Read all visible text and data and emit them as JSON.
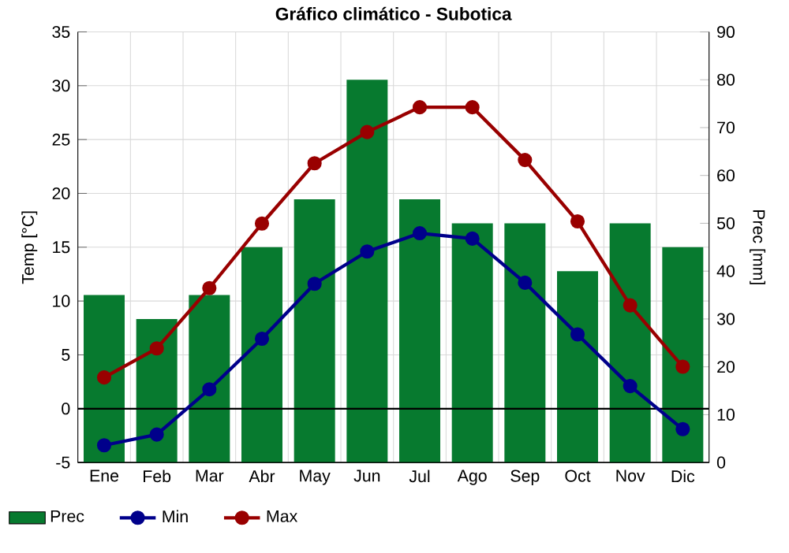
{
  "chart_data": {
    "type": "bar",
    "title": "Gráfico climático - Subotica",
    "categories": [
      "Ene",
      "Feb",
      "Mar",
      "Abr",
      "May",
      "Jun",
      "Jul",
      "Ago",
      "Sep",
      "Oct",
      "Nov",
      "Dic"
    ],
    "ylabel": "Temp [°C]",
    "y2label": "Prec [mm]",
    "ylim": [
      -5,
      35
    ],
    "yticks": [
      -5,
      0,
      5,
      10,
      15,
      20,
      25,
      30,
      35
    ],
    "y2lim": [
      0,
      90
    ],
    "y2ticks": [
      0,
      10,
      20,
      30,
      40,
      50,
      60,
      70,
      80,
      90
    ],
    "series": [
      {
        "name": "Prec",
        "axis": "y2",
        "color": "#077a2f",
        "values": [
          35,
          30,
          35,
          45,
          55,
          80,
          55,
          50,
          50,
          40,
          50,
          45
        ]
      },
      {
        "name": "Min",
        "type": "line",
        "color": "#00008b",
        "values": [
          -3.4,
          -2.4,
          1.8,
          6.5,
          11.6,
          14.6,
          16.3,
          15.8,
          11.7,
          6.9,
          2.1,
          -1.9
        ]
      },
      {
        "name": "Max",
        "type": "line",
        "color": "#990000",
        "values": [
          2.9,
          5.6,
          11.2,
          17.2,
          22.8,
          25.7,
          28,
          28,
          23.1,
          17.4,
          9.6,
          3.9
        ]
      }
    ],
    "grid": true,
    "legend": "bottom",
    "marker": "circle",
    "ref_lines": [
      {
        "axis": "y",
        "value": 0,
        "color": "#000000"
      }
    ]
  }
}
